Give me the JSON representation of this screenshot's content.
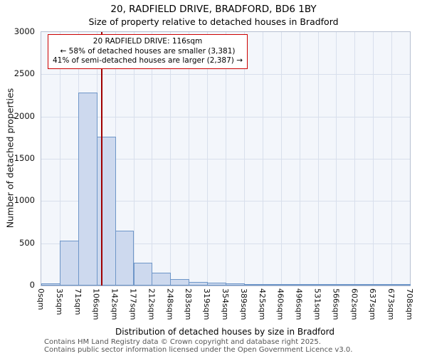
{
  "title": "20, RADFIELD DRIVE, BRADFORD, BD6 1BY",
  "subtitle": "Size of property relative to detached houses in Bradford",
  "chart_data": {
    "type": "bar",
    "title": "20, RADFIELD DRIVE, BRADFORD, BD6 1BY",
    "subtitle": "Size of property relative to detached houses in Bradford",
    "xlabel": "Distribution of detached houses by size in Bradford",
    "ylabel": "Number of detached properties",
    "ylim": [
      0,
      3000
    ],
    "ytick_step": 500,
    "grid": true,
    "legend_position": "none",
    "tick_labels": [
      "0sqm",
      "35sqm",
      "71sqm",
      "106sqm",
      "142sqm",
      "177sqm",
      "212sqm",
      "248sqm",
      "283sqm",
      "319sqm",
      "354sqm",
      "389sqm",
      "425sqm",
      "460sqm",
      "496sqm",
      "531sqm",
      "566sqm",
      "602sqm",
      "637sqm",
      "673sqm",
      "708sqm"
    ],
    "bin_edges_sqm": [
      0,
      35,
      71,
      106,
      142,
      177,
      212,
      248,
      283,
      319,
      354,
      389,
      425,
      460,
      496,
      531,
      566,
      602,
      637,
      673,
      708
    ],
    "values": [
      25,
      530,
      2280,
      1765,
      650,
      270,
      150,
      80,
      45,
      30,
      25,
      20,
      15,
      10,
      5,
      3,
      2,
      2,
      1,
      1
    ],
    "bar_fill": "#cdd9ee",
    "bar_border": "#6e96c8",
    "marker": {
      "value_sqm": 116,
      "color": "#a00000"
    },
    "annotation": {
      "border_color": "#cc0000",
      "lines": [
        "20 RADFIELD DRIVE: 116sqm",
        "← 58% of detached houses are smaller (3,381)",
        "41% of semi-detached houses are larger (2,387) →"
      ]
    }
  },
  "footer": {
    "line1": "Contains HM Land Registry data © Crown copyright and database right 2025.",
    "line2": "Contains public sector information licensed under the Open Government Licence v3.0."
  }
}
